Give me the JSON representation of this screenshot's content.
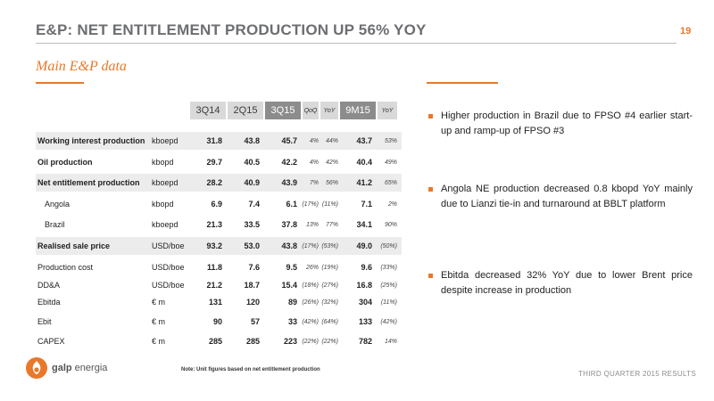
{
  "header": {
    "title": "E&P: NET ENTITLEMENT PRODUCTION UP 56% YOY",
    "page_number": "19"
  },
  "section": {
    "title": "Main E&P data"
  },
  "table": {
    "columns": [
      "3Q14",
      "2Q15",
      "3Q15",
      "QoQ",
      "YoY",
      "9M15",
      "YoY"
    ],
    "rows": [
      {
        "label": "Working interest production",
        "unit": "kboepd",
        "q3_14": "31.8",
        "q2_15": "43.8",
        "q3_15": "45.7",
        "qoq": "4%",
        "yoy": "44%",
        "m9_15": "43.7",
        "yoy9": "53%"
      },
      {
        "label": "Oil production",
        "unit": "kbopd",
        "q3_14": "29.7",
        "q2_15": "40.5",
        "q3_15": "42.2",
        "qoq": "4%",
        "yoy": "42%",
        "m9_15": "40.4",
        "yoy9": "49%"
      },
      {
        "label": "Net entitlement production",
        "unit": "kboepd",
        "q3_14": "28.2",
        "q2_15": "40.9",
        "q3_15": "43.9",
        "qoq": "7%",
        "yoy": "56%",
        "m9_15": "41.2",
        "yoy9": "65%"
      },
      {
        "label": "Angola",
        "unit": "kbopd",
        "q3_14": "6.9",
        "q2_15": "7.4",
        "q3_15": "6.1",
        "qoq": "(17%)",
        "yoy": "(11%)",
        "m9_15": "7.1",
        "yoy9": "2%"
      },
      {
        "label": "Brazil",
        "unit": "kboepd",
        "q3_14": "21.3",
        "q2_15": "33.5",
        "q3_15": "37.8",
        "qoq": "13%",
        "yoy": "77%",
        "m9_15": "34.1",
        "yoy9": "90%"
      },
      {
        "label": "Realised sale price",
        "unit": "USD/boe",
        "q3_14": "93.2",
        "q2_15": "53.0",
        "q3_15": "43.8",
        "qoq": "(17%)",
        "yoy": "(53%)",
        "m9_15": "49.0",
        "yoy9": "(50%)"
      },
      {
        "label": "Production cost",
        "unit": "USD/boe",
        "q3_14": "11.8",
        "q2_15": "7.6",
        "q3_15": "9.5",
        "qoq": "26%",
        "yoy": "(19%)",
        "m9_15": "9.6",
        "yoy9": "(33%)"
      },
      {
        "label": "DD&A",
        "unit": "USD/boe",
        "q3_14": "21.2",
        "q2_15": "18.7",
        "q3_15": "15.4",
        "qoq": "(18%)",
        "yoy": "(27%)",
        "m9_15": "16.8",
        "yoy9": "(25%)"
      },
      {
        "label": "Ebitda",
        "unit": "€ m",
        "q3_14": "131",
        "q2_15": "120",
        "q3_15": "89",
        "qoq": "(26%)",
        "yoy": "(32%)",
        "m9_15": "304",
        "yoy9": "(11%)"
      },
      {
        "label": "Ebit",
        "unit": "€ m",
        "q3_14": "90",
        "q2_15": "57",
        "q3_15": "33",
        "qoq": "(42%)",
        "yoy": "(64%)",
        "m9_15": "133",
        "yoy9": "(42%)"
      },
      {
        "label": "CAPEX",
        "unit": "€ m",
        "q3_14": "285",
        "q2_15": "285",
        "q3_15": "223",
        "qoq": "(22%)",
        "yoy": "(22%)",
        "m9_15": "782",
        "yoy9": "14%"
      }
    ],
    "footnote": "Note: Unit figures based on net entitlement production"
  },
  "bullets": [
    "Higher production in Brazil due to FPSO #4 earlier start-up and ramp-up of FPSO #3",
    "Angola NE production decreased 0.8 kbopd YoY mainly due to Lianzi tie-in and turnaround at BBLT platform",
    "Ebitda decreased 32% YoY due to lower Brent price despite increase in production"
  ],
  "footer": {
    "logo_bold": "galp",
    "logo_rest": " energia",
    "right": "THIRD QUARTER 2015 RESULTS"
  },
  "colors": {
    "accent": "#e8782a",
    "title_gray": "#6d6e71"
  }
}
